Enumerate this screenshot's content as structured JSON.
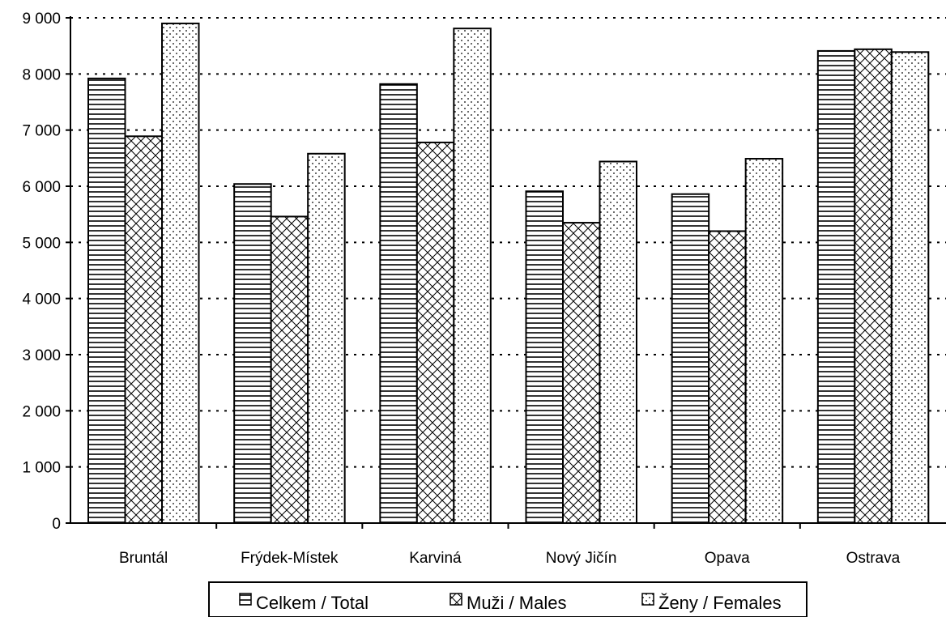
{
  "chart_data": {
    "type": "bar",
    "categories": [
      "Bruntál",
      "Frýdek-Místek",
      "Karviná",
      "Nový Jičín",
      "Opava",
      "Ostrava"
    ],
    "series": [
      {
        "name": "Celkem / Total",
        "values": [
          7920,
          6040,
          7820,
          5910,
          5860,
          8410
        ],
        "pattern": "horizontal-lines"
      },
      {
        "name": "Muži / Males",
        "values": [
          6890,
          5460,
          6780,
          5350,
          5200,
          8440
        ],
        "pattern": "crosshatch"
      },
      {
        "name": "Ženy / Females",
        "values": [
          8900,
          6580,
          8810,
          6440,
          6490,
          8390
        ],
        "pattern": "dots"
      }
    ],
    "ylim": [
      0,
      9000
    ],
    "yticks": [
      0,
      1000,
      2000,
      3000,
      4000,
      5000,
      6000,
      7000,
      8000,
      9000
    ],
    "ytick_labels": [
      "0",
      "1 000",
      "2 000",
      "3 000",
      "4 000",
      "5 000",
      "6 000",
      "7 000",
      "8 000",
      "9 000"
    ],
    "title": "",
    "xlabel": "",
    "ylabel": "",
    "grid": "dotted horizontal",
    "legend_position": "bottom"
  }
}
